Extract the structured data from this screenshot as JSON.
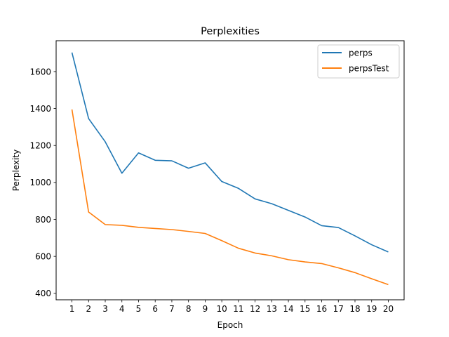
{
  "chart_data": {
    "type": "line",
    "title": "Perplexities",
    "xlabel": "Epoch",
    "ylabel": "Perplexity",
    "x": [
      1,
      2,
      3,
      4,
      5,
      6,
      7,
      8,
      9,
      10,
      11,
      12,
      13,
      14,
      15,
      16,
      17,
      18,
      19,
      20
    ],
    "xticks": [
      "1",
      "2",
      "3",
      "4",
      "5",
      "6",
      "7",
      "8",
      "9",
      "10",
      "11",
      "12",
      "13",
      "14",
      "15",
      "16",
      "17",
      "18",
      "19",
      "20"
    ],
    "yticks": [
      "400",
      "600",
      "800",
      "1000",
      "1200",
      "1400",
      "1600"
    ],
    "ylim": [
      365,
      1767
    ],
    "xlim": [
      0.05,
      20.95
    ],
    "grid": false,
    "legend_position": "top-right",
    "series": [
      {
        "name": "perps",
        "color": "#1f77b4",
        "values": [
          1703,
          1346,
          1220,
          1050,
          1160,
          1120,
          1117,
          1077,
          1106,
          1005,
          968,
          911,
          885,
          849,
          813,
          766,
          756,
          711,
          663,
          624
        ]
      },
      {
        "name": "perpsTest",
        "color": "#ff7f0e",
        "values": [
          1395,
          840,
          772,
          768,
          757,
          751,
          745,
          735,
          724,
          685,
          644,
          618,
          603,
          582,
          570,
          561,
          538,
          512,
          479,
          447
        ]
      }
    ]
  }
}
